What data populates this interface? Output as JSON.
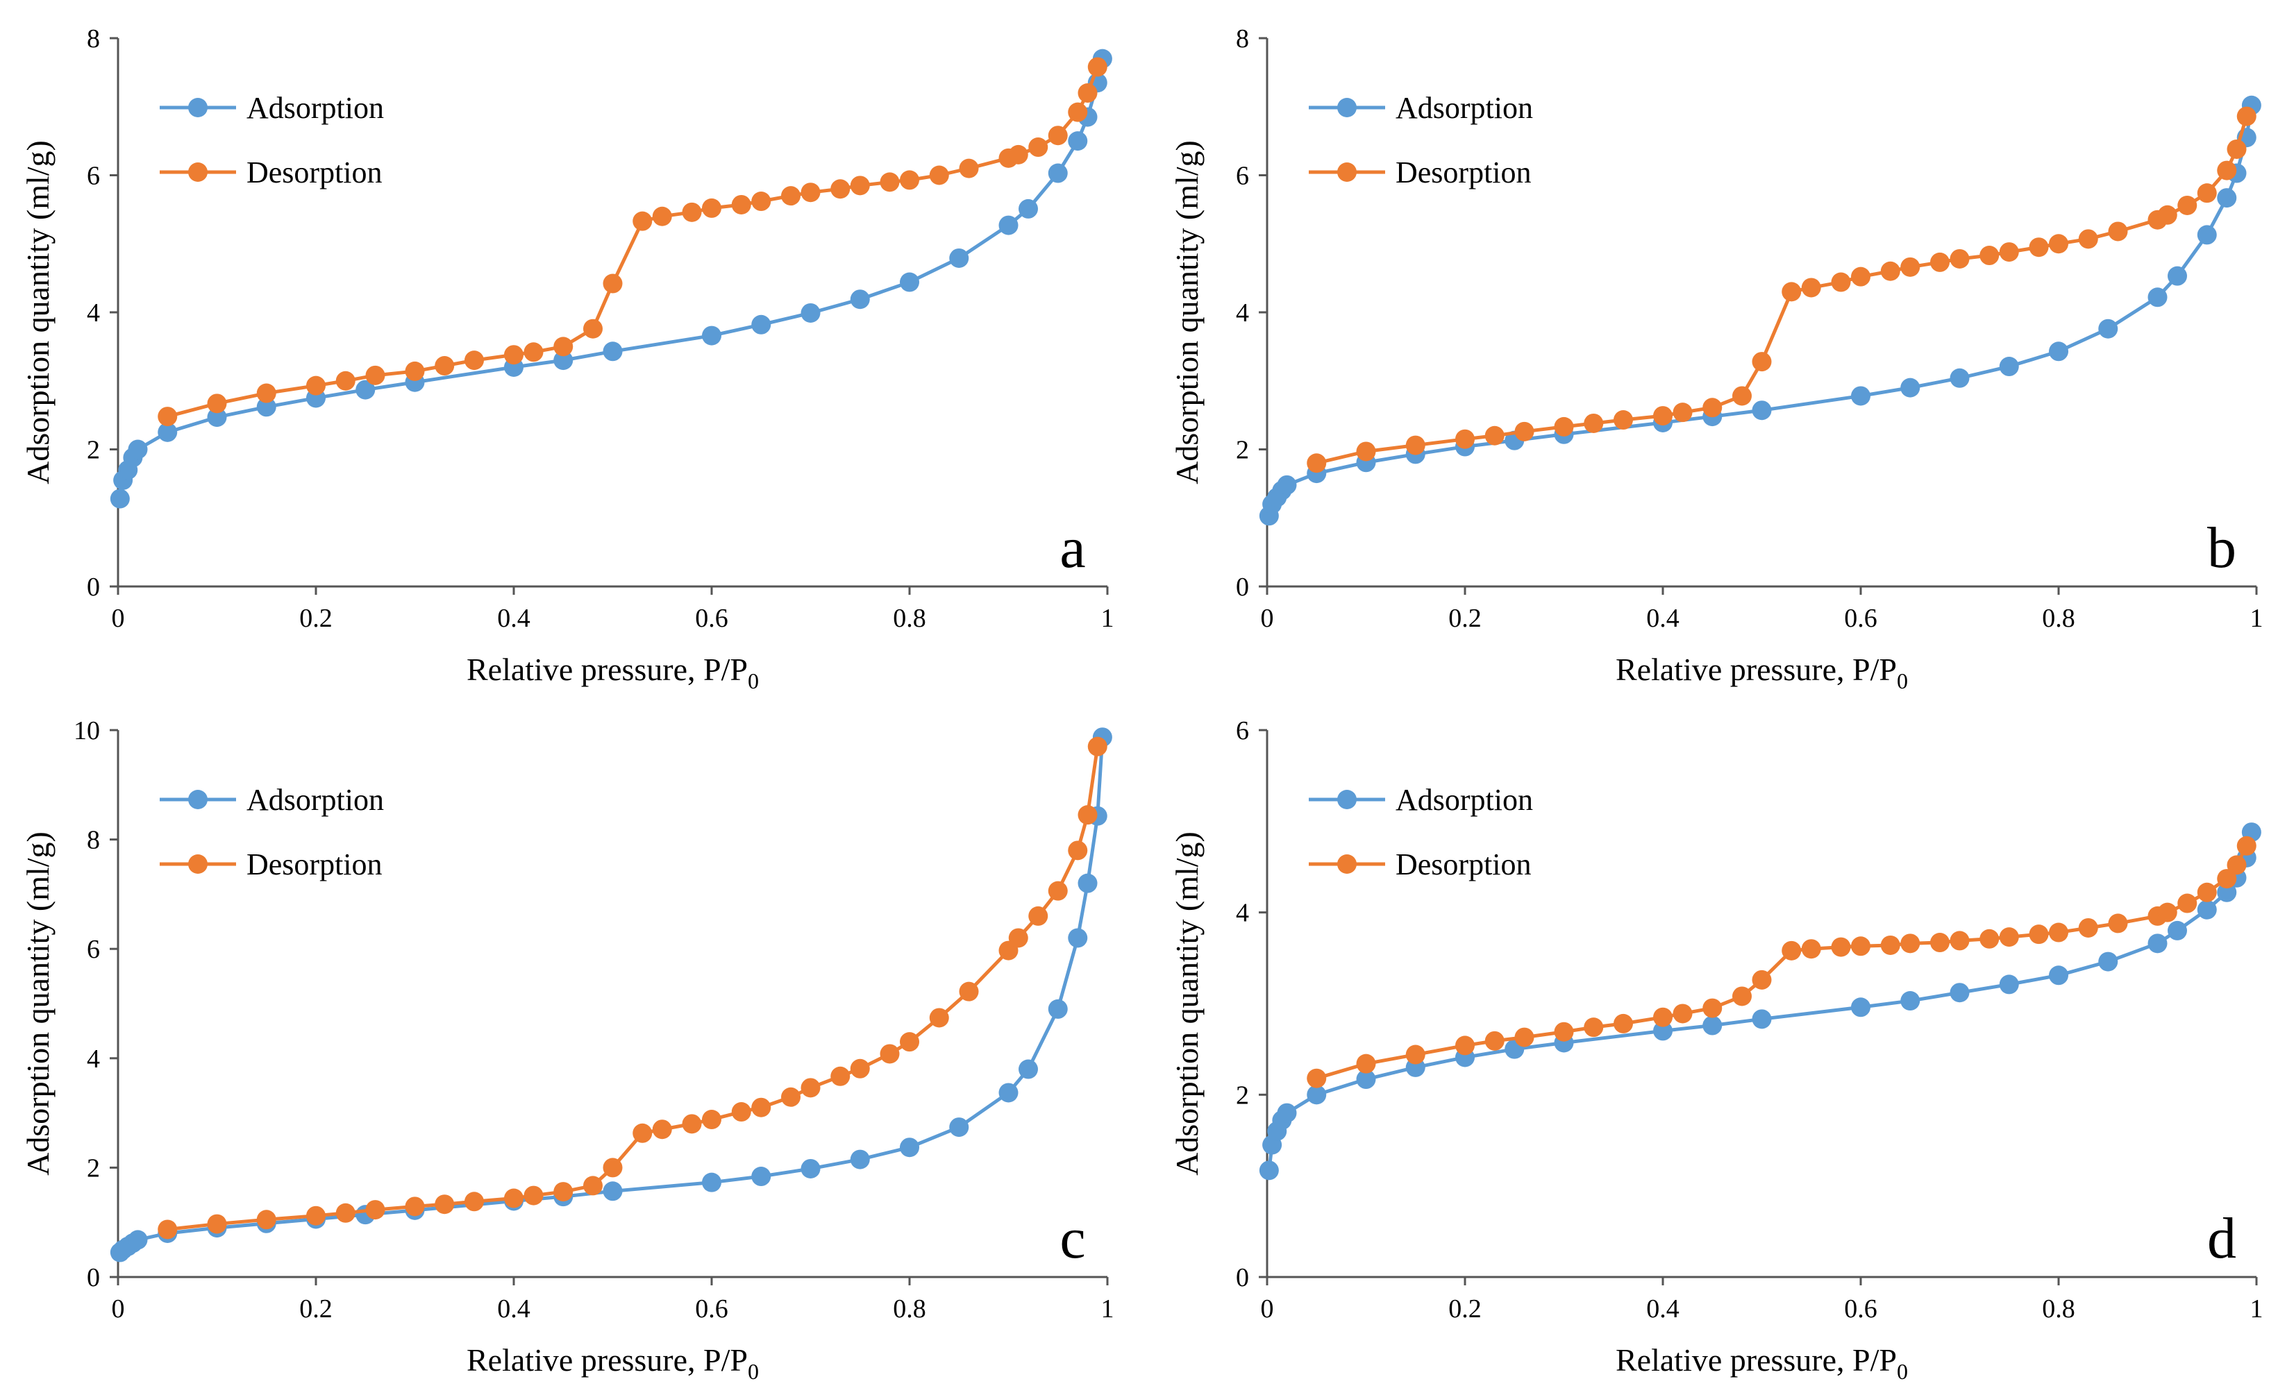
{
  "colors": {
    "adsorption": "#5B9BD5",
    "desorption": "#ED7D31",
    "axis": "#555555"
  },
  "chart_data": [
    {
      "type": "line",
      "panel_label": "a",
      "xlabel": "Relative pressure, P/P",
      "xlabel_subscript": "0",
      "ylabel": "Adsorption quantity (ml/g)",
      "xlim": [
        0,
        1
      ],
      "ylim": [
        0,
        8
      ],
      "x_ticks": [
        "0",
        "0.2",
        "0.4",
        "0.6",
        "0.8",
        "1"
      ],
      "y_ticks": [
        "0",
        "2",
        "4",
        "6",
        "8"
      ],
      "legend": [
        "Adsorption",
        "Desorption"
      ],
      "series": [
        {
          "name": "Adsorption",
          "x": [
            0.002,
            0.005,
            0.01,
            0.015,
            0.02,
            0.05,
            0.1,
            0.15,
            0.2,
            0.25,
            0.3,
            0.4,
            0.45,
            0.5,
            0.6,
            0.65,
            0.7,
            0.75,
            0.8,
            0.85,
            0.9,
            0.92,
            0.95,
            0.97,
            0.98,
            0.99,
            0.995
          ],
          "y": [
            1.28,
            1.55,
            1.7,
            1.88,
            2.0,
            2.25,
            2.47,
            2.62,
            2.75,
            2.87,
            2.98,
            3.2,
            3.3,
            3.43,
            3.66,
            3.82,
            3.99,
            4.19,
            4.44,
            4.79,
            5.27,
            5.51,
            6.03,
            6.5,
            6.85,
            7.35,
            7.7
          ]
        },
        {
          "name": "Desorption",
          "x": [
            0.05,
            0.1,
            0.15,
            0.2,
            0.23,
            0.26,
            0.3,
            0.33,
            0.36,
            0.4,
            0.42,
            0.45,
            0.48,
            0.5,
            0.53,
            0.55,
            0.58,
            0.6,
            0.63,
            0.65,
            0.68,
            0.7,
            0.73,
            0.75,
            0.78,
            0.8,
            0.83,
            0.86,
            0.9,
            0.91,
            0.93,
            0.95,
            0.97,
            0.98,
            0.99
          ],
          "y": [
            2.48,
            2.67,
            2.82,
            2.93,
            3.0,
            3.08,
            3.14,
            3.22,
            3.3,
            3.38,
            3.42,
            3.5,
            3.76,
            4.42,
            5.33,
            5.4,
            5.46,
            5.52,
            5.57,
            5.62,
            5.7,
            5.75,
            5.8,
            5.85,
            5.9,
            5.93,
            6.0,
            6.1,
            6.25,
            6.3,
            6.41,
            6.58,
            6.92,
            7.2,
            7.58
          ]
        }
      ]
    },
    {
      "type": "line",
      "panel_label": "b",
      "xlabel": "Relative pressure, P/P",
      "xlabel_subscript": "0",
      "ylabel": "Adsorption quantity (ml/g)",
      "xlim": [
        0,
        1
      ],
      "ylim": [
        0,
        8
      ],
      "x_ticks": [
        "0",
        "0.2",
        "0.4",
        "0.6",
        "0.8",
        "1"
      ],
      "y_ticks": [
        "0",
        "2",
        "4",
        "6",
        "8"
      ],
      "legend": [
        "Adsorption",
        "Desorption"
      ],
      "series": [
        {
          "name": "Adsorption",
          "x": [
            0.002,
            0.005,
            0.01,
            0.015,
            0.02,
            0.05,
            0.1,
            0.15,
            0.2,
            0.25,
            0.3,
            0.4,
            0.45,
            0.5,
            0.6,
            0.65,
            0.7,
            0.75,
            0.8,
            0.85,
            0.9,
            0.92,
            0.95,
            0.97,
            0.98,
            0.99,
            0.995
          ],
          "y": [
            1.03,
            1.2,
            1.3,
            1.4,
            1.48,
            1.65,
            1.81,
            1.93,
            2.04,
            2.13,
            2.22,
            2.39,
            2.48,
            2.57,
            2.78,
            2.9,
            3.04,
            3.21,
            3.43,
            3.76,
            4.22,
            4.53,
            5.13,
            5.67,
            6.03,
            6.55,
            7.02
          ]
        },
        {
          "name": "Desorption",
          "x": [
            0.05,
            0.1,
            0.15,
            0.2,
            0.23,
            0.26,
            0.3,
            0.33,
            0.36,
            0.4,
            0.42,
            0.45,
            0.48,
            0.5,
            0.53,
            0.55,
            0.58,
            0.6,
            0.63,
            0.65,
            0.68,
            0.7,
            0.73,
            0.75,
            0.78,
            0.8,
            0.83,
            0.86,
            0.9,
            0.91,
            0.93,
            0.95,
            0.97,
            0.98,
            0.99
          ],
          "y": [
            1.8,
            1.97,
            2.06,
            2.15,
            2.2,
            2.26,
            2.33,
            2.38,
            2.43,
            2.49,
            2.54,
            2.61,
            2.78,
            3.28,
            4.3,
            4.36,
            4.44,
            4.52,
            4.6,
            4.66,
            4.73,
            4.78,
            4.83,
            4.88,
            4.95,
            5.0,
            5.07,
            5.18,
            5.35,
            5.42,
            5.56,
            5.74,
            6.07,
            6.38,
            6.86
          ]
        }
      ]
    },
    {
      "type": "line",
      "panel_label": "c",
      "xlabel": "Relative pressure, P/P",
      "xlabel_subscript": "0",
      "ylabel": "Adsorption quantity (ml/g)",
      "xlim": [
        0,
        1
      ],
      "ylim": [
        0,
        10
      ],
      "x_ticks": [
        "0",
        "0.2",
        "0.4",
        "0.6",
        "0.8",
        "1"
      ],
      "y_ticks": [
        "0",
        "2",
        "4",
        "6",
        "8",
        "10"
      ],
      "legend": [
        "Adsorption",
        "Desorption"
      ],
      "series": [
        {
          "name": "Adsorption",
          "x": [
            0.002,
            0.005,
            0.01,
            0.015,
            0.02,
            0.05,
            0.1,
            0.15,
            0.2,
            0.25,
            0.3,
            0.4,
            0.45,
            0.5,
            0.6,
            0.65,
            0.7,
            0.75,
            0.8,
            0.85,
            0.9,
            0.92,
            0.95,
            0.97,
            0.98,
            0.99,
            0.995
          ],
          "y": [
            0.45,
            0.5,
            0.56,
            0.62,
            0.68,
            0.8,
            0.9,
            0.98,
            1.06,
            1.14,
            1.22,
            1.39,
            1.47,
            1.57,
            1.73,
            1.84,
            1.98,
            2.15,
            2.37,
            2.74,
            3.37,
            3.8,
            4.9,
            6.2,
            7.2,
            8.43,
            9.87
          ]
        },
        {
          "name": "Desorption",
          "x": [
            0.05,
            0.1,
            0.15,
            0.2,
            0.23,
            0.26,
            0.3,
            0.33,
            0.36,
            0.4,
            0.42,
            0.45,
            0.48,
            0.5,
            0.53,
            0.55,
            0.58,
            0.6,
            0.63,
            0.65,
            0.68,
            0.7,
            0.73,
            0.75,
            0.78,
            0.8,
            0.83,
            0.86,
            0.9,
            0.91,
            0.93,
            0.95,
            0.97,
            0.98,
            0.99
          ],
          "y": [
            0.87,
            0.97,
            1.05,
            1.12,
            1.17,
            1.23,
            1.29,
            1.33,
            1.38,
            1.44,
            1.49,
            1.56,
            1.67,
            2.0,
            2.63,
            2.7,
            2.8,
            2.88,
            3.02,
            3.1,
            3.29,
            3.46,
            3.67,
            3.81,
            4.08,
            4.3,
            4.74,
            5.22,
            5.97,
            6.2,
            6.6,
            7.06,
            7.8,
            8.45,
            9.7
          ]
        }
      ]
    },
    {
      "type": "line",
      "panel_label": "d",
      "xlabel": "Relative pressure, P/P",
      "xlabel_subscript": "0",
      "ylabel": "Adsorption quantity (ml/g)",
      "xlim": [
        0,
        1
      ],
      "ylim": [
        0,
        6
      ],
      "x_ticks": [
        "0",
        "0.2",
        "0.4",
        "0.6",
        "0.8",
        "1"
      ],
      "y_ticks": [
        "0",
        "2",
        "4",
        "6"
      ],
      "legend": [
        "Adsorption",
        "Desorption"
      ],
      "series": [
        {
          "name": "Adsorption",
          "x": [
            0.002,
            0.005,
            0.01,
            0.015,
            0.02,
            0.05,
            0.1,
            0.15,
            0.2,
            0.25,
            0.3,
            0.4,
            0.45,
            0.5,
            0.6,
            0.65,
            0.7,
            0.75,
            0.8,
            0.85,
            0.9,
            0.92,
            0.95,
            0.97,
            0.98,
            0.99,
            0.995
          ],
          "y": [
            1.17,
            1.45,
            1.6,
            1.72,
            1.8,
            2.0,
            2.17,
            2.3,
            2.41,
            2.5,
            2.57,
            2.7,
            2.76,
            2.83,
            2.96,
            3.03,
            3.12,
            3.21,
            3.31,
            3.46,
            3.66,
            3.8,
            4.03,
            4.22,
            4.38,
            4.6,
            4.88
          ]
        },
        {
          "name": "Desorption",
          "x": [
            0.05,
            0.1,
            0.15,
            0.2,
            0.23,
            0.26,
            0.3,
            0.33,
            0.36,
            0.4,
            0.42,
            0.45,
            0.48,
            0.5,
            0.53,
            0.55,
            0.58,
            0.6,
            0.63,
            0.65,
            0.68,
            0.7,
            0.73,
            0.75,
            0.78,
            0.8,
            0.83,
            0.86,
            0.9,
            0.91,
            0.93,
            0.95,
            0.97,
            0.98,
            0.99
          ],
          "y": [
            2.18,
            2.34,
            2.44,
            2.54,
            2.59,
            2.63,
            2.69,
            2.74,
            2.78,
            2.85,
            2.89,
            2.95,
            3.08,
            3.26,
            3.58,
            3.6,
            3.62,
            3.63,
            3.64,
            3.66,
            3.67,
            3.69,
            3.71,
            3.73,
            3.76,
            3.78,
            3.83,
            3.88,
            3.96,
            4.0,
            4.1,
            4.22,
            4.37,
            4.52,
            4.73
          ]
        }
      ]
    }
  ]
}
